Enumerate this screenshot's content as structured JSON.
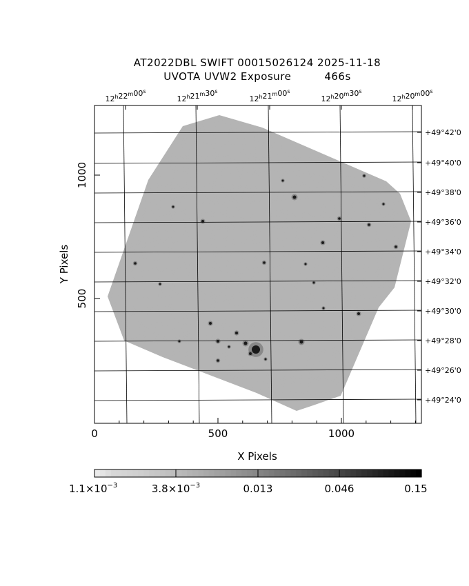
{
  "header": {
    "title_line1": "AT2022DBL  SWIFT  00015026124  2025-11-18",
    "title_line2": "UVOTA  UVW2  Exposure",
    "exposure": "466s"
  },
  "axes": {
    "x_label": "X Pixels",
    "y_label": "Y Pixels",
    "x_ticks": [
      "0",
      "500",
      "1000"
    ],
    "y_ticks": [
      "500",
      "1000"
    ],
    "ra_ticks": [
      {
        "h": "12",
        "m": "22",
        "s": "00"
      },
      {
        "h": "12",
        "m": "21",
        "s": "30"
      },
      {
        "h": "12",
        "m": "21",
        "s": "00"
      },
      {
        "h": "12",
        "m": "20",
        "s": "30"
      },
      {
        "h": "12",
        "m": "20",
        "s": "00"
      }
    ],
    "dec_ticks": [
      "+49°42'0",
      "+49°40'0",
      "+49°38'0",
      "+49°36'0",
      "+49°34'0",
      "+49°32'0",
      "+49°30'0",
      "+49°28'0",
      "+49°26'0",
      "+49°24'0"
    ]
  },
  "colorbar": {
    "labels": [
      {
        "base": "1.1×10",
        "exp": "−3"
      },
      {
        "base": "3.8×10",
        "exp": "−3"
      },
      {
        "base": "0.013",
        "exp": ""
      },
      {
        "base": "0.046",
        "exp": ""
      },
      {
        "base": "0.15",
        "exp": ""
      }
    ]
  },
  "colors": {
    "background": "#ffffff",
    "field": "#8c8c8c",
    "ink": "#000000"
  }
}
